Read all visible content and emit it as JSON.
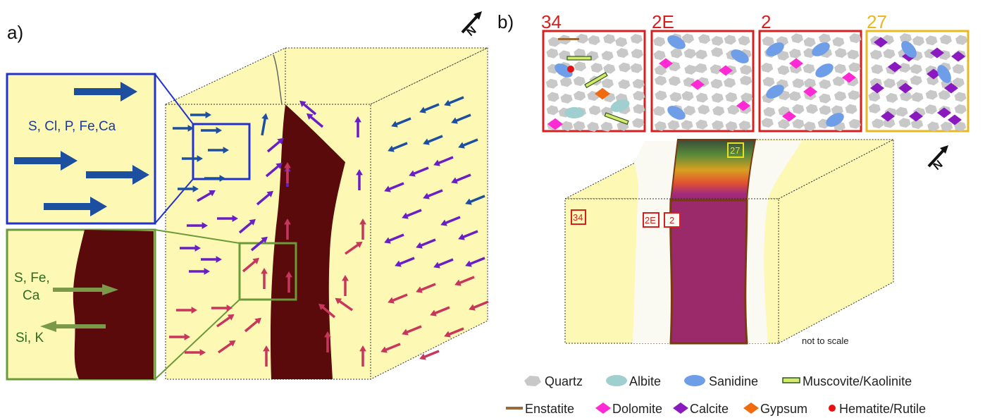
{
  "panel_a": {
    "label": "a)",
    "inset_blue_text": "S, Cl, P, Fe,Ca",
    "inset_green_in": "S, Fe,",
    "inset_green_in2": "Ca",
    "inset_green_out": "Si, K"
  },
  "panel_b": {
    "label": "b)",
    "samples": [
      {
        "id": "34",
        "color": "#d62020"
      },
      {
        "id": "2E",
        "color": "#d62020"
      },
      {
        "id": "2",
        "color": "#d62020"
      },
      {
        "id": "27",
        "color": "#e8b820"
      }
    ],
    "block_markers": [
      "34",
      "2E",
      "2",
      "27"
    ],
    "note": "not to scale"
  },
  "legend": {
    "row1": [
      "Quartz",
      "Albite",
      "Sanidine",
      "Muscovite/Kaolinite"
    ],
    "row2": [
      "Enstatite",
      "Dolomite",
      "Calcite",
      "Gypsum",
      "Hematite/Rutile"
    ]
  },
  "colors": {
    "block_fill": "#fdf8b4",
    "vein": "#5a0a0a",
    "blue_arrow": "#1d4fa0",
    "purple_arrow": "#6a1fc4",
    "pink_arrow": "#c8365c",
    "inset_blue_frame": "#2233cc",
    "inset_green_frame": "#6a9a3a",
    "quartz": "#c8c8c8",
    "albite": "#9fcfcf",
    "sanidine": "#6f9ee8",
    "muscovite": "#d8e86a",
    "enstatite": "#9a6a3a",
    "dolomite": "#ff2ad4",
    "calcite": "#8a1ac0",
    "gypsum": "#f06a10",
    "hematite": "#e81010"
  },
  "north_symbol": "N"
}
